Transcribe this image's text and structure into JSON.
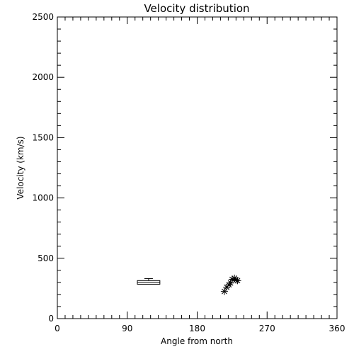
{
  "chart_data": {
    "type": "scatter",
    "title": "Velocity distribution",
    "xlabel": "Angle from north",
    "ylabel": "Velocity (km/s)",
    "xlim": [
      0,
      360
    ],
    "ylim": [
      0,
      2500
    ],
    "xticks": [
      0,
      90,
      180,
      270,
      360
    ],
    "yticks": [
      0,
      500,
      1000,
      1500,
      2000,
      2500
    ],
    "xtick_labels": [
      "0",
      "90",
      "180",
      "270",
      "360"
    ],
    "ytick_labels": [
      "0",
      "500",
      "1000",
      "1500",
      "2000",
      "2500"
    ],
    "x_minor_step": 10,
    "y_minor_step": 100,
    "grid": false,
    "box_summary": {
      "x_range": [
        103,
        132
      ],
      "box_low": 285,
      "box_high": 315,
      "median": 302,
      "whisker_high": 332
    },
    "points": [
      {
        "x": 215,
        "y": 225
      },
      {
        "x": 218,
        "y": 260
      },
      {
        "x": 221,
        "y": 280
      },
      {
        "x": 223,
        "y": 295
      },
      {
        "x": 225,
        "y": 325
      },
      {
        "x": 228,
        "y": 335
      },
      {
        "x": 230,
        "y": 320
      },
      {
        "x": 232,
        "y": 315
      }
    ]
  }
}
